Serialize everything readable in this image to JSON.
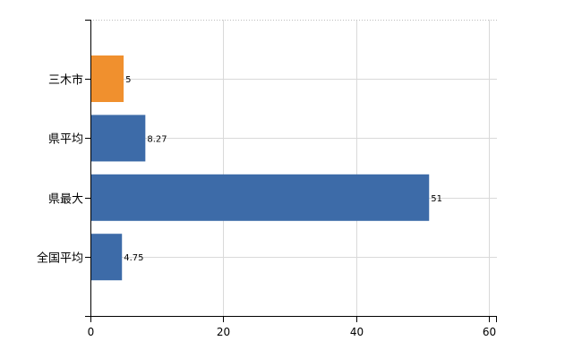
{
  "chart_data": {
    "type": "bar",
    "orientation": "horizontal",
    "categories": [
      "三木市",
      "県平均",
      "県最大",
      "全国平均"
    ],
    "values": [
      5,
      8.27,
      51,
      4.75
    ],
    "value_labels": [
      "5",
      "8.27",
      "51",
      "4.75"
    ],
    "bar_colors": [
      "#f0902e",
      "#3d6ba8",
      "#3d6ba8",
      "#3d6ba8"
    ],
    "title": "",
    "xlabel": "",
    "ylabel": "",
    "xlim": [
      0,
      60
    ],
    "x_ticks": [
      0,
      20,
      40,
      60
    ],
    "x_tick_labels": [
      "0",
      "20",
      "40",
      "60"
    ],
    "grid": true,
    "grid_color": "#d9d9d9",
    "axis_color": "#000000"
  }
}
